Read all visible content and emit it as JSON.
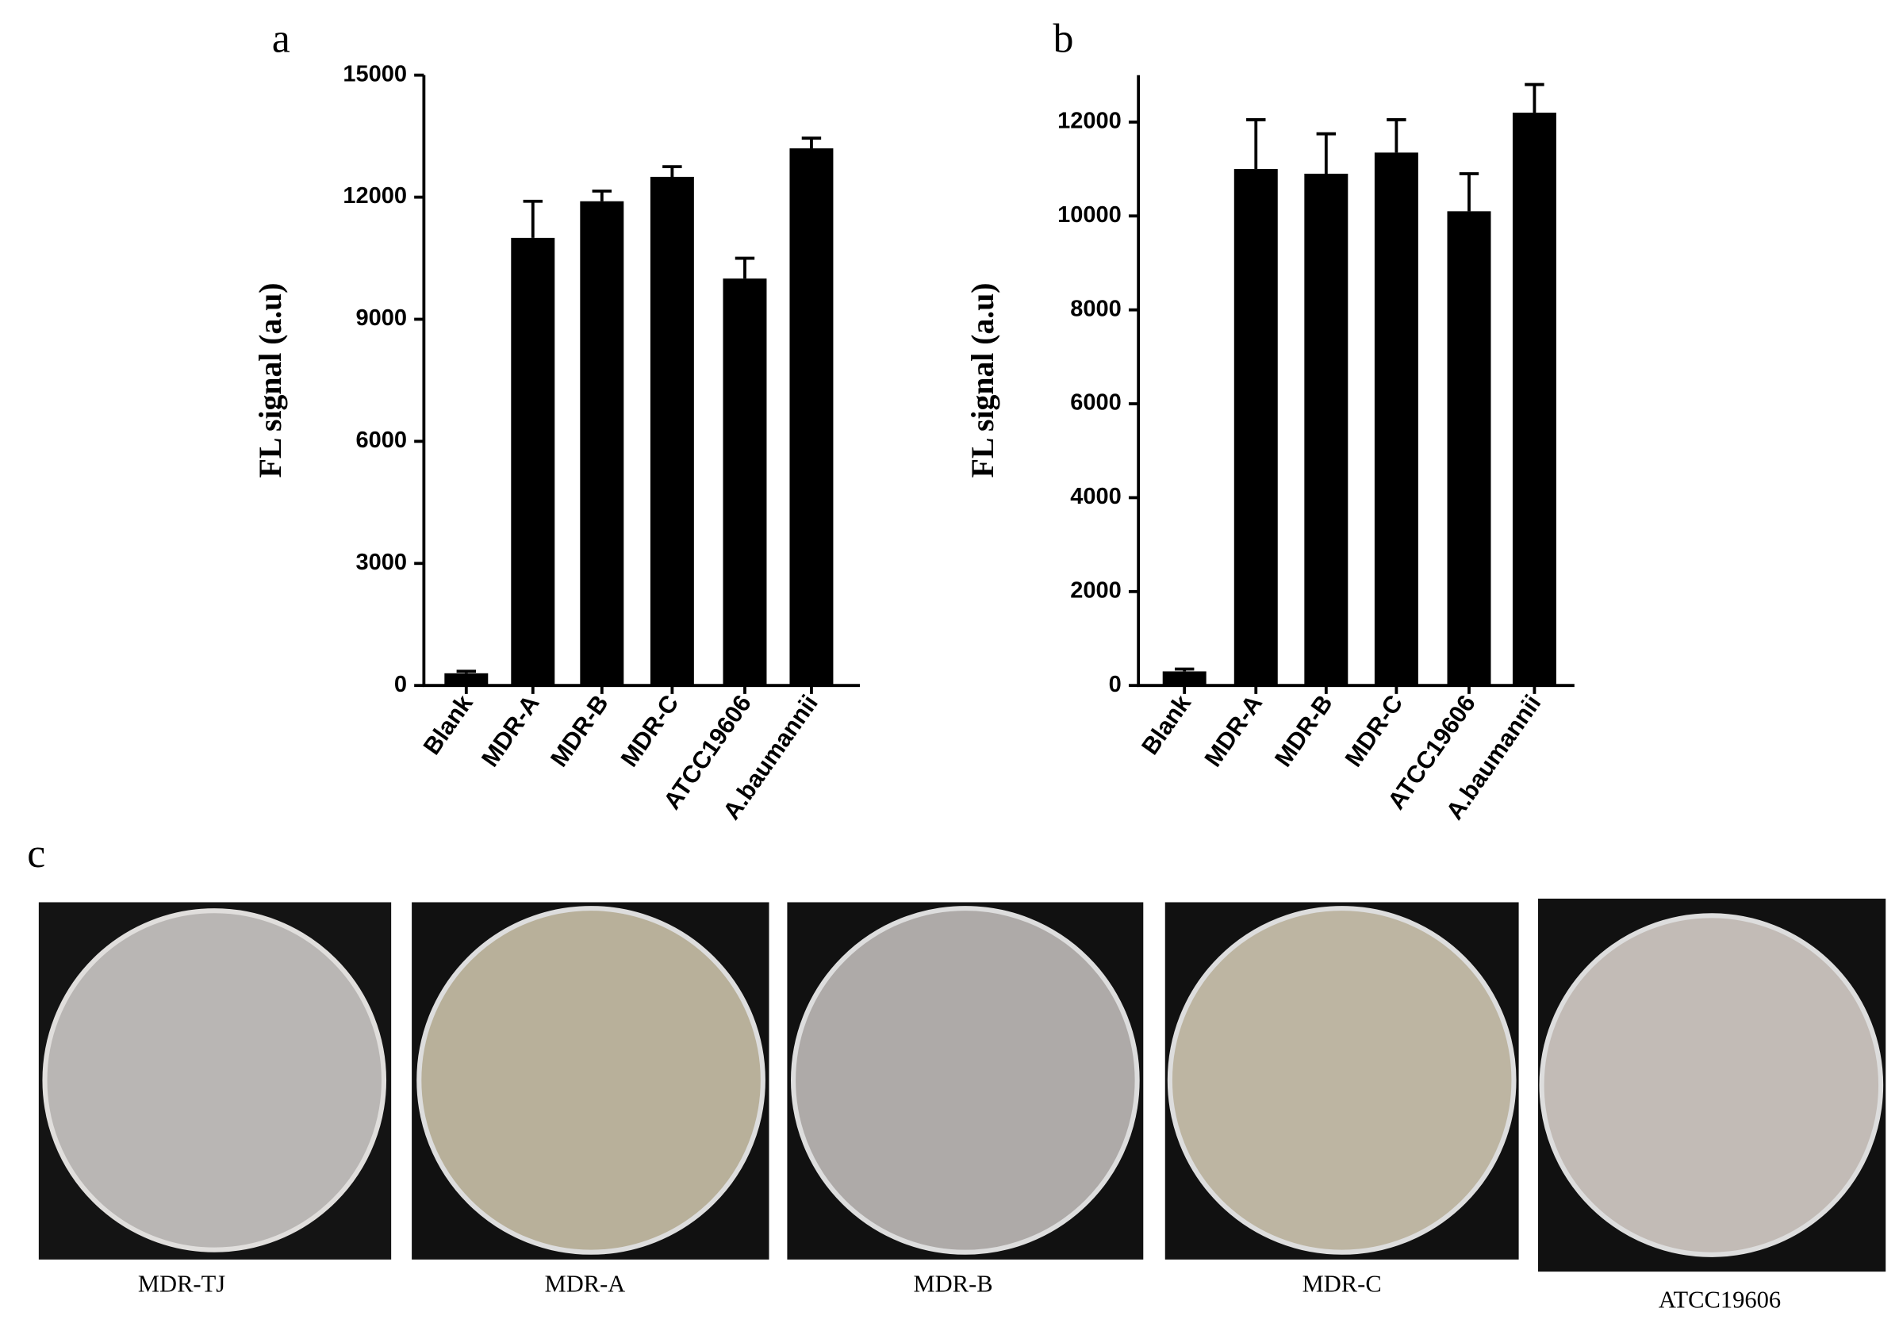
{
  "chart_data": [
    {
      "type": "bar",
      "panel": "a",
      "ylabel": "FL signal (a.u)",
      "categories": [
        "Blank",
        "MDR-A",
        "MDR-B",
        "MDR-C",
        "ATCC19606",
        "A.baumannii"
      ],
      "values": [
        300,
        11000,
        11900,
        12500,
        10000,
        13200
      ],
      "errors": [
        50,
        900,
        250,
        250,
        500,
        250
      ],
      "color": "#000000",
      "ylim": [
        0,
        15000
      ],
      "yticks": [
        0,
        3000,
        6000,
        9000,
        12000,
        15000
      ]
    },
    {
      "type": "bar",
      "panel": "b",
      "ylabel": "FL signal (a.u)",
      "categories": [
        "Blank",
        "MDR-A",
        "MDR-B",
        "MDR-C",
        "ATCC19606",
        "A.baumannii"
      ],
      "values": [
        300,
        11000,
        10900,
        11350,
        10100,
        12200
      ],
      "errors": [
        50,
        1050,
        850,
        700,
        800,
        600
      ],
      "color": "#000000",
      "ylim": [
        0,
        13000
      ],
      "yticks": [
        0,
        2000,
        4000,
        6000,
        8000,
        10000,
        12000
      ]
    }
  ],
  "panel_c": {
    "label": "c",
    "photos": [
      "MDR-TJ",
      "MDR-A",
      "MDR-B",
      "MDR-C",
      "ATCC19606"
    ]
  }
}
